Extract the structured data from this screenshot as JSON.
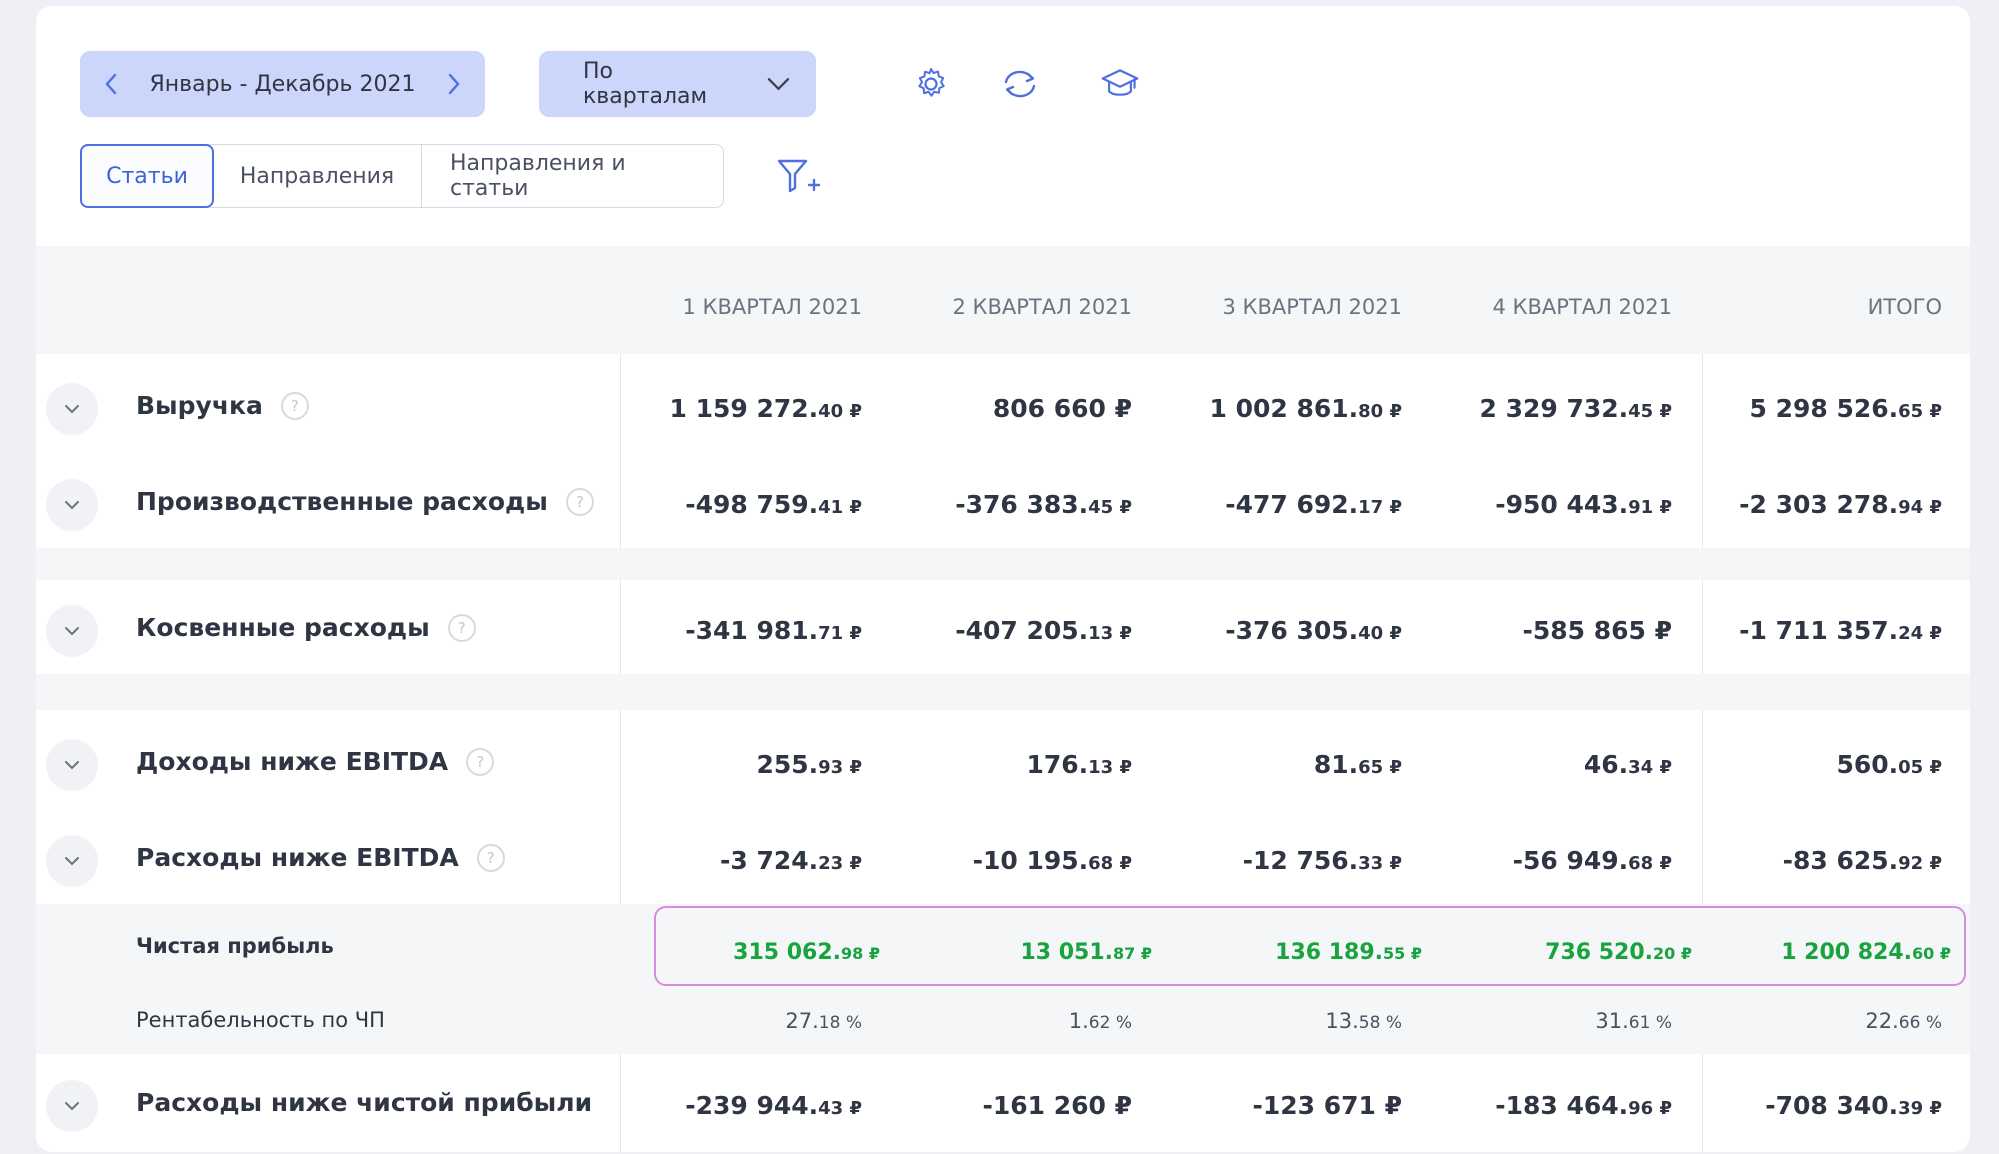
{
  "toolbar": {
    "period_label": "Январь - Декабрь 2021",
    "grouping_label": "По кварталам",
    "icons": [
      "gear-icon",
      "refresh-icon",
      "graduation-cap-icon"
    ]
  },
  "tabs": [
    {
      "label": "Статьи",
      "active": true
    },
    {
      "label": "Направления",
      "active": false
    },
    {
      "label": "Направления и статьи",
      "active": false
    }
  ],
  "columns": [
    "1 КВАРТАЛ 2021",
    "2 КВАРТАЛ 2021",
    "3 КВАРТАЛ 2021",
    "4 КВАРТАЛ 2021",
    "ИТОГО"
  ],
  "rows": [
    {
      "label": "Выручка",
      "help": "?",
      "values": [
        {
          "main": "1 159 272.",
          "dec": "40 ₽"
        },
        {
          "main": "806 660 ₽",
          "dec": ""
        },
        {
          "main": "1 002 861.",
          "dec": "80 ₽"
        },
        {
          "main": "2 329 732.",
          "dec": "45 ₽"
        },
        {
          "main": "5 298 526.",
          "dec": "65 ₽"
        }
      ]
    },
    {
      "label": "Производственные расходы",
      "help": "?",
      "values": [
        {
          "main": "-498 759.",
          "dec": "41 ₽"
        },
        {
          "main": "-376 383.",
          "dec": "45 ₽"
        },
        {
          "main": "-477 692.",
          "dec": "17 ₽"
        },
        {
          "main": "-950 443.",
          "dec": "91 ₽"
        },
        {
          "main": "-2 303 278.",
          "dec": "94 ₽"
        }
      ]
    },
    {
      "label": "Косвенные расходы",
      "help": "?",
      "values": [
        {
          "main": "-341 981.",
          "dec": "71 ₽"
        },
        {
          "main": "-407 205.",
          "dec": "13 ₽"
        },
        {
          "main": "-376 305.",
          "dec": "40 ₽"
        },
        {
          "main": "-585 865 ₽",
          "dec": ""
        },
        {
          "main": "-1 711 357.",
          "dec": "24 ₽"
        }
      ]
    },
    {
      "label": "Доходы ниже EBITDA",
      "help": "?",
      "values": [
        {
          "main": "255.",
          "dec": "93 ₽"
        },
        {
          "main": "176.",
          "dec": "13 ₽"
        },
        {
          "main": "81.",
          "dec": "65 ₽"
        },
        {
          "main": "46.",
          "dec": "34 ₽"
        },
        {
          "main": "560.",
          "dec": "05 ₽"
        }
      ]
    },
    {
      "label": "Расходы ниже EBITDA",
      "help": "?",
      "values": [
        {
          "main": "-3 724.",
          "dec": "23 ₽"
        },
        {
          "main": "-10 195.",
          "dec": "68 ₽"
        },
        {
          "main": "-12 756.",
          "dec": "33 ₽"
        },
        {
          "main": "-56 949.",
          "dec": "68 ₽"
        },
        {
          "main": "-83 625.",
          "dec": "92 ₽"
        }
      ]
    },
    {
      "label": "Чистая прибыль",
      "values": [
        {
          "main": "315 062.",
          "dec": "98 ₽"
        },
        {
          "main": "13 051.",
          "dec": "87 ₽"
        },
        {
          "main": "136 189.",
          "dec": "55 ₽"
        },
        {
          "main": "736 520.",
          "dec": "20 ₽"
        },
        {
          "main": "1 200 824.",
          "dec": "60 ₽"
        }
      ]
    },
    {
      "label": "Рентабельность по ЧП",
      "values": [
        {
          "main": "27.",
          "dec": "18 %"
        },
        {
          "main": "1.",
          "dec": "62 %"
        },
        {
          "main": "13.",
          "dec": "58 %"
        },
        {
          "main": "31.",
          "dec": "61 %"
        },
        {
          "main": "22.",
          "dec": "66 %"
        }
      ]
    },
    {
      "label": "Расходы ниже чистой прибыли",
      "values": [
        {
          "main": "-239 944.",
          "dec": "43 ₽"
        },
        {
          "main": "-161 260 ₽",
          "dec": ""
        },
        {
          "main": "-123 671 ₽",
          "dec": ""
        },
        {
          "main": "-183 464.",
          "dec": "96 ₽"
        },
        {
          "main": "-708 340.",
          "dec": "39 ₽"
        }
      ]
    }
  ],
  "colors": {
    "accent": "#4e6fe0",
    "accent_bg": "#ccd6fa",
    "positive": "#18a33f",
    "highlight_border": "#d68be0"
  }
}
